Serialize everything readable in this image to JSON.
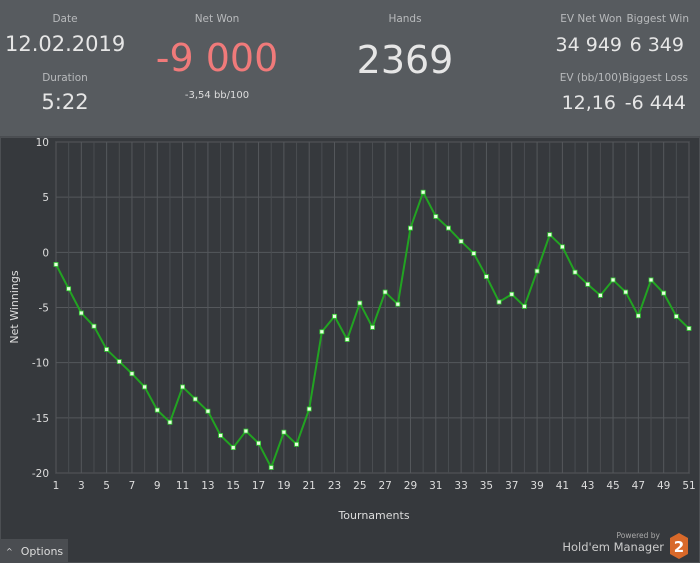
{
  "header": {
    "date_label": "Date",
    "date": "12.02.2019",
    "duration_label": "Duration",
    "duration": "5:22",
    "net_won_label": "Net Won",
    "net_won": "-9 000",
    "bb100": "-3,54 bb/100",
    "hands_label": "Hands",
    "hands": "2369",
    "ev_net_won_label": "EV Net Won",
    "ev_net_won": "34 949",
    "biggest_win_label": "Biggest Win",
    "biggest_win": "6 349",
    "ev_bb100_label": "EV (bb/100)",
    "ev_bb100": "12,16",
    "biggest_loss_label": "Biggest Loss",
    "biggest_loss": "-6 444",
    "net_won_color": "#f07a7a"
  },
  "footer": {
    "options_label": "Options",
    "powered_by": "Powered by",
    "brand": "Hold'em Manager",
    "brand_logo": "2"
  },
  "chart_data": {
    "type": "line",
    "xlabel": "Tournaments",
    "ylabel": "Net Winnings",
    "ylim": [
      -20,
      10
    ],
    "xlim": [
      1,
      51
    ],
    "yticks": [
      "10",
      "5",
      "0",
      "-5",
      "-10",
      "-15",
      "-20"
    ],
    "xticks": [
      "1",
      "3",
      "5",
      "7",
      "9",
      "11",
      "13",
      "15",
      "17",
      "19",
      "21",
      "23",
      "25",
      "27",
      "29",
      "31",
      "33",
      "35",
      "37",
      "39",
      "41",
      "43",
      "45",
      "47",
      "49",
      "51"
    ],
    "grid": true,
    "line_color": "#22a322",
    "x": [
      1,
      2,
      3,
      4,
      5,
      6,
      7,
      8,
      9,
      10,
      11,
      12,
      13,
      14,
      15,
      16,
      17,
      18,
      19,
      20,
      21,
      22,
      23,
      24,
      25,
      26,
      27,
      28,
      29,
      30,
      31,
      32,
      33,
      34,
      35,
      36,
      37,
      38,
      39,
      40,
      41,
      42,
      43,
      44,
      45,
      46,
      47,
      48,
      49,
      50,
      51
    ],
    "values": [
      -1.1,
      -3.3,
      -5.5,
      -6.7,
      -8.8,
      -9.9,
      -11.0,
      -12.2,
      -14.3,
      -15.4,
      -12.2,
      -13.3,
      -14.4,
      -16.6,
      -17.7,
      -16.2,
      -17.3,
      -19.5,
      -16.3,
      -17.4,
      -14.2,
      -7.2,
      -5.8,
      -7.9,
      -4.6,
      -6.8,
      -3.6,
      -4.7,
      2.2,
      5.45,
      3.25,
      2.2,
      1.0,
      -0.1,
      -2.2,
      -4.5,
      -3.8,
      -4.9,
      -1.7,
      1.6,
      0.5,
      -1.8,
      -2.9,
      -3.9,
      -2.5,
      -3.6,
      -5.75,
      -2.5,
      -3.7,
      -5.8,
      -6.9
    ]
  }
}
